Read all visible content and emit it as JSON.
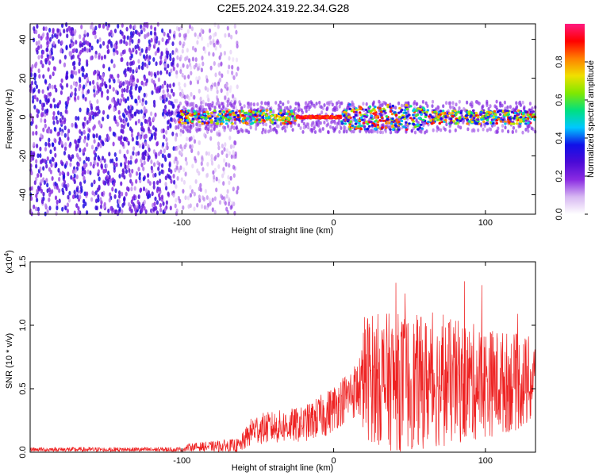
{
  "title": "C2E5.2024.319.22.34.G28",
  "colors": {
    "snr_line": "#ee2222",
    "colormap": [
      "#ffffff",
      "#d7b8f2",
      "#8a2be2",
      "#4b0ad6",
      "#1010e8",
      "#00c8ff",
      "#00e080",
      "#80e800",
      "#f0e000",
      "#ff8000",
      "#ff0000",
      "#ff1a80"
    ]
  },
  "chart_data": [
    {
      "type": "heatmap",
      "xlabel": "Height of straight line (km)",
      "ylabel": "Frequency (Hz)",
      "xlim": [
        -200,
        133
      ],
      "ylim": [
        -50,
        48
      ],
      "x_ticks": [
        -100,
        0,
        100
      ],
      "y_ticks": [
        -40,
        -20,
        0,
        20,
        40
      ],
      "description_regions": [
        {
          "x_range": [
            -200,
            -105
          ],
          "y_range": [
            -50,
            48
          ],
          "amplitude": [
            0.1,
            0.35
          ]
        },
        {
          "x_range": [
            -105,
            -63
          ],
          "y_range": [
            -50,
            48
          ],
          "amplitude": [
            0.05,
            0.2
          ]
        },
        {
          "x_range": [
            -103,
            133
          ],
          "y_center": 0,
          "y_halfwidth": 5,
          "amplitude": [
            0.2,
            0.95
          ]
        }
      ],
      "colorbar": {
        "label": "Normalized spectral amplitude",
        "range": [
          0.0,
          1.0
        ],
        "ticks": [
          "0.0",
          "0.2",
          "0.4",
          "0.6",
          "0.8"
        ]
      }
    },
    {
      "type": "line",
      "xlabel": "Height of straight line (km)",
      "ylabel": "SNR (10 * v/v)",
      "y_multiplier_label": "(x10",
      "y_multiplier_exp": "4",
      "xlim": [
        -200,
        133
      ],
      "ylim": [
        0.0,
        1.5
      ],
      "x_ticks": [
        -100,
        0,
        100
      ],
      "y_ticks": [
        "0.0",
        "0.5",
        "1.0",
        "1.5"
      ],
      "envelope": [
        {
          "x": -200,
          "mean": 0.02,
          "amp": 0.02
        },
        {
          "x": -100,
          "mean": 0.02,
          "amp": 0.02
        },
        {
          "x": -95,
          "mean": 0.04,
          "amp": 0.03
        },
        {
          "x": -62,
          "mean": 0.05,
          "amp": 0.06
        },
        {
          "x": -53,
          "mean": 0.18,
          "amp": 0.12
        },
        {
          "x": -20,
          "mean": 0.22,
          "amp": 0.14
        },
        {
          "x": -5,
          "mean": 0.3,
          "amp": 0.18
        },
        {
          "x": 10,
          "mean": 0.45,
          "amp": 0.2
        },
        {
          "x": 18,
          "mean": 0.52,
          "amp": 0.25
        },
        {
          "x": 20,
          "mean": 0.6,
          "amp": 0.5
        },
        {
          "x": 40,
          "mean": 0.55,
          "amp": 0.55
        },
        {
          "x": 80,
          "mean": 0.55,
          "amp": 0.5
        },
        {
          "x": 133,
          "mean": 0.55,
          "amp": 0.35
        }
      ]
    }
  ]
}
